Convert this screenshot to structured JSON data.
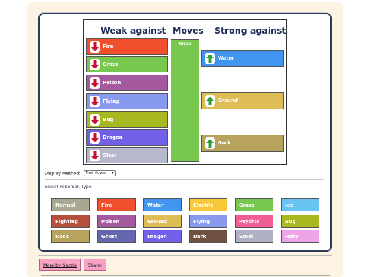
{
  "chart_headers": {
    "weak": "Weak against",
    "moves": "Moves",
    "strong": "Strong against"
  },
  "weak_against": [
    {
      "label": "Fire",
      "color": "#f2502c"
    },
    {
      "label": "Grass",
      "color": "#78c850"
    },
    {
      "label": "Poison",
      "color": "#a55aa0"
    },
    {
      "label": "Flying",
      "color": "#8899f0"
    },
    {
      "label": "Bug",
      "color": "#a8b820"
    },
    {
      "label": "Dragon",
      "color": "#7360e8"
    },
    {
      "label": "Steel",
      "color": "#b8b8cc"
    }
  ],
  "moves": {
    "label": "Grass",
    "color": "#78c850"
  },
  "strong_against": [
    {
      "label": "Water",
      "color": "#3f95f0"
    },
    {
      "label": "Ground",
      "color": "#dfbd55"
    },
    {
      "label": "Rock",
      "color": "#b8a35c"
    }
  ],
  "display_method": {
    "label": "Display Method:",
    "value": "Type Moves"
  },
  "select_type_label": "Select Pokemon Type",
  "types": [
    {
      "label": "Normal",
      "color": "#a8a890"
    },
    {
      "label": "Fire",
      "color": "#f2502c"
    },
    {
      "label": "Water",
      "color": "#3f95f0"
    },
    {
      "label": "Electric",
      "color": "#f8c83a"
    },
    {
      "label": "Grass",
      "color": "#78c850"
    },
    {
      "label": "Ice",
      "color": "#68c4f2"
    },
    {
      "label": "Fighting",
      "color": "#b5503d"
    },
    {
      "label": "Poison",
      "color": "#a55aa0"
    },
    {
      "label": "Ground",
      "color": "#dfbd55"
    },
    {
      "label": "Flying",
      "color": "#8899f0"
    },
    {
      "label": "Psychic",
      "color": "#f15d95"
    },
    {
      "label": "Bug",
      "color": "#a8b820"
    },
    {
      "label": "Rock",
      "color": "#b8a35c"
    },
    {
      "label": "Ghost",
      "color": "#6566b0"
    },
    {
      "label": "Dragon",
      "color": "#7360e8"
    },
    {
      "label": "Dark",
      "color": "#705040"
    },
    {
      "label": "Steel",
      "color": "#b0b0c4"
    },
    {
      "label": "Fairy",
      "color": "#eea4e8"
    }
  ],
  "footer": {
    "more_label": "More by Sazzle",
    "share_label": "Share!"
  },
  "icons": {
    "weak": "down-arrow-icon",
    "strong": "up-arrow-icon"
  }
}
